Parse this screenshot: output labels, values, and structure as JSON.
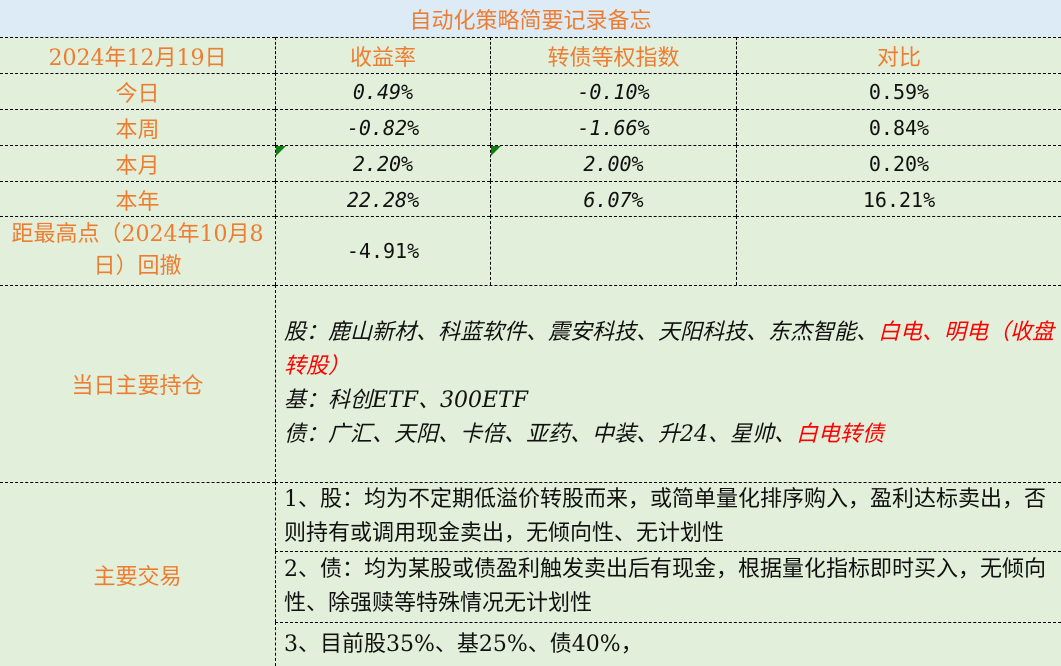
{
  "title": "自动化策略简要记录备忘",
  "header": {
    "date": "2024年12月19日",
    "col1": "收益率",
    "col2": "转债等权指数",
    "col3": "对比"
  },
  "rows": [
    {
      "label": "今日",
      "return": "0.49%",
      "index": "-0.10%",
      "diff": "0.59%"
    },
    {
      "label": "本周",
      "return": "-0.82%",
      "index": "-1.66%",
      "diff": "0.84%"
    },
    {
      "label": "本月",
      "return": "2.20%",
      "index": "2.00%",
      "diff": "0.20%"
    },
    {
      "label": "本年",
      "return": "22.28%",
      "index": "6.07%",
      "diff": "16.21%"
    }
  ],
  "drawdown": {
    "label": "距最高点（2024年10月8日）回撤",
    "value": "-4.91%"
  },
  "holdings": {
    "label": "当日主要持仓",
    "stocks_prefix": "股：鹿山新材、科蓝软件、震安科技、天阳科技、东杰智能、",
    "stocks_red": "白电、明电（收盘转股）",
    "funds": "基：科创ETF、300ETF",
    "bonds_prefix": "债：广汇、天阳、卡倍、亚药、中装、升24、星帅、",
    "bonds_red": "白电转债"
  },
  "trades": {
    "label": "主要交易",
    "items": [
      "1、股：均为不定期低溢价转股而来，或简单量化排序购入，盈利达标卖出，否则持有或调用现金卖出，无倾向性、无计划性",
      "2、债：均为某股或债盈利触发卖出后有现金，根据量化指标即时买入，无倾向性、除强赎等特殊情况无计划性",
      "3、目前股35%、基25%、债40%，"
    ]
  },
  "colors": {
    "label_orange": "#ed7d31",
    "background": "#e2efda",
    "title_bg": "#ddebf7",
    "highlight_red": "#ff0000",
    "comment_marker": "#118011"
  }
}
